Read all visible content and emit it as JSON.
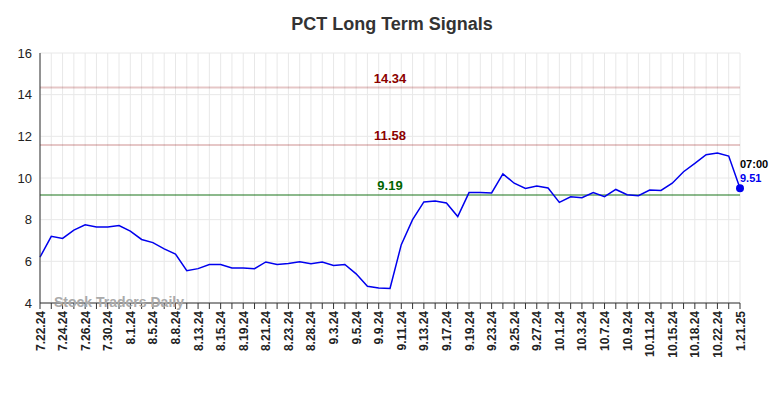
{
  "chart_data": {
    "type": "line",
    "title": "PCT Long Term Signals",
    "categories": [
      "7.22.24",
      null,
      "7.24.24",
      null,
      "7.26.24",
      null,
      "7.30.24",
      null,
      "8.1.24",
      null,
      "8.5.24",
      null,
      "8.8.24",
      null,
      "8.13.24",
      null,
      "8.15.24",
      null,
      "8.19.24",
      null,
      "8.21.24",
      null,
      "8.23.24",
      null,
      "8.28.24",
      null,
      "9.3.24",
      null,
      "9.5.24",
      null,
      "9.9.24",
      null,
      "9.11.24",
      null,
      "9.13.24",
      null,
      "9.17.24",
      null,
      "9.19.24",
      null,
      "9.23.24",
      null,
      "9.25.24",
      null,
      "9.27.24",
      null,
      "10.1.24",
      null,
      "10.3.24",
      null,
      "10.7.24",
      null,
      "10.9.24",
      null,
      "10.11.24",
      null,
      "10.15.24",
      null,
      "10.18.24",
      null,
      "10.22.24",
      null,
      "1.21.25"
    ],
    "values": [
      6.2,
      7.2,
      7.1,
      7.5,
      7.75,
      7.65,
      7.65,
      7.72,
      7.45,
      7.05,
      6.9,
      6.6,
      6.35,
      5.55,
      5.65,
      5.85,
      5.85,
      5.68,
      5.68,
      5.65,
      5.97,
      5.85,
      5.9,
      5.98,
      5.88,
      5.97,
      5.8,
      5.85,
      5.4,
      4.8,
      4.72,
      4.7,
      6.8,
      8.0,
      8.85,
      8.9,
      8.8,
      8.15,
      9.3,
      9.3,
      9.28,
      10.2,
      9.75,
      9.5,
      9.62,
      9.52,
      8.83,
      9.1,
      9.05,
      9.3,
      9.1,
      9.45,
      9.2,
      9.15,
      9.42,
      9.4,
      9.75,
      10.3,
      10.7,
      11.12,
      11.2,
      11.05,
      9.51
    ],
    "color": "#0000ee",
    "ylim": [
      4,
      16
    ],
    "yticks": [
      4,
      6,
      8,
      10,
      12,
      14,
      16
    ],
    "grid": true,
    "reference_lines": [
      {
        "value": 14.34,
        "label": "14.34",
        "color": "#8b0000"
      },
      {
        "value": 11.58,
        "label": "11.58",
        "color": "#8b0000"
      },
      {
        "value": 9.19,
        "label": "9.19",
        "color": "#006400"
      }
    ],
    "last_point_label": "07:00",
    "watermark": "Stock Traders Daily"
  }
}
